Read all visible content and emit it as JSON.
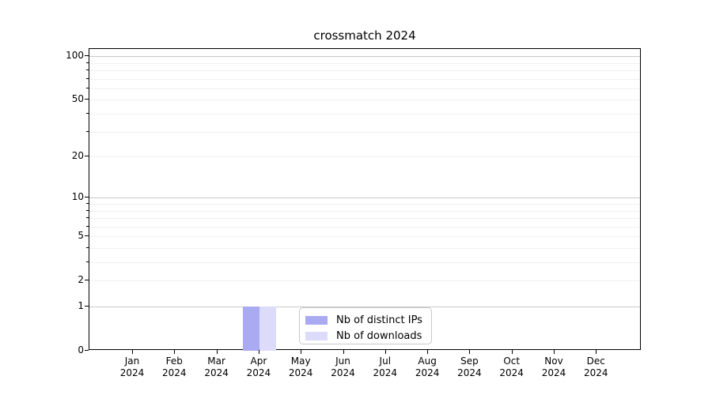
{
  "title": "crossmatch 2024",
  "chart_data": {
    "type": "bar",
    "title": "crossmatch 2024",
    "x_axis": {
      "months": [
        "Jan",
        "Feb",
        "Mar",
        "Apr",
        "May",
        "Jun",
        "Jul",
        "Aug",
        "Sep",
        "Oct",
        "Nov",
        "Dec"
      ],
      "year": "2024"
    },
    "y_axis": {
      "scale": "log10(1+y)",
      "tick_labels": [
        "100",
        "50",
        "20",
        "10",
        "5",
        "2",
        "1",
        "0"
      ],
      "ticks": [
        100,
        50,
        20,
        10,
        5,
        2,
        1,
        0
      ],
      "minor_ticks": [
        90,
        80,
        70,
        60,
        40,
        30,
        9,
        8,
        7,
        6,
        4,
        3
      ],
      "range": [
        0,
        112
      ],
      "major_gridline_values": [
        100,
        10,
        1
      ]
    },
    "series": [
      {
        "name": "Nb of distinct IPs",
        "color": "#aaaaf2",
        "values": [
          0,
          0,
          0,
          1,
          0,
          0,
          0,
          0,
          0,
          0,
          0,
          0
        ]
      },
      {
        "name": "Nb of downloads",
        "color": "#dcdcfa",
        "values": [
          0,
          0,
          0,
          1,
          0,
          0,
          0,
          0,
          0,
          0,
          0,
          0
        ]
      }
    ],
    "grid": true,
    "legend_position": "inside-bottom-center",
    "colors": {
      "major_grid": "#c9c9c9",
      "minor_grid": "#f0f0f0",
      "spine": "#000000"
    }
  },
  "legend": {
    "items": [
      {
        "label": "Nb of distinct IPs"
      },
      {
        "label": "Nb of downloads"
      }
    ]
  }
}
